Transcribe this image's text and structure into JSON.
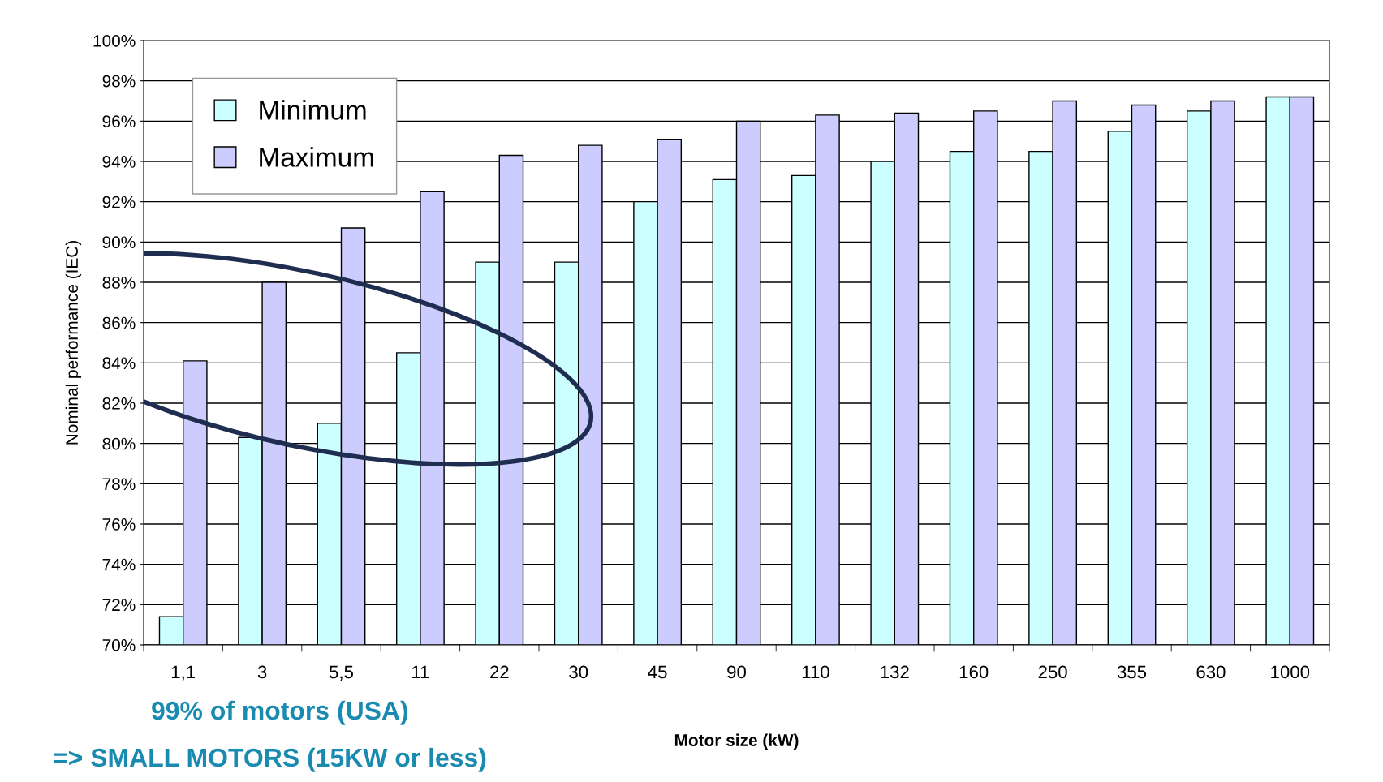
{
  "chart_data": {
    "type": "bar",
    "xlabel": "Motor size (kW)",
    "ylabel": "Nominal performance (IEC)",
    "categories": [
      "1,1",
      "3",
      "5,5",
      "11",
      "22",
      "30",
      "45",
      "90",
      "110",
      "132",
      "160",
      "250",
      "355",
      "630",
      "1000"
    ],
    "series": [
      {
        "name": "Minimum",
        "color": "#ccffff",
        "values": [
          71.4,
          80.3,
          81.0,
          84.5,
          89.0,
          89.0,
          92.0,
          93.1,
          93.3,
          94.0,
          94.5,
          94.5,
          95.5,
          96.5,
          97.2
        ]
      },
      {
        "name": "Maximum",
        "color": "#ccccff",
        "values": [
          84.1,
          88.0,
          90.7,
          92.5,
          94.3,
          94.8,
          95.1,
          96.0,
          96.3,
          96.4,
          96.5,
          97.0,
          96.8,
          97.0,
          97.2
        ]
      }
    ],
    "ylim": [
      70,
      100
    ],
    "yticks": [
      {
        "value": 70,
        "label": "70%"
      },
      {
        "value": 72,
        "label": "72%"
      },
      {
        "value": 74,
        "label": "74%"
      },
      {
        "value": 76,
        "label": "76%"
      },
      {
        "value": 78,
        "label": "78%"
      },
      {
        "value": 80,
        "label": "80%"
      },
      {
        "value": 82,
        "label": "82%"
      },
      {
        "value": 84,
        "label": "84%"
      },
      {
        "value": 86,
        "label": "86%"
      },
      {
        "value": 88,
        "label": "88%"
      },
      {
        "value": 90,
        "label": "90%"
      },
      {
        "value": 92,
        "label": "92%"
      },
      {
        "value": 94,
        "label": "94%"
      },
      {
        "value": 96,
        "label": "96%"
      },
      {
        "value": 98,
        "label": "98%"
      },
      {
        "value": 100,
        "label": "100%"
      }
    ],
    "grid": "y",
    "legend": "top left",
    "annotations": [
      "99% of motors (USA)",
      "=> SMALL MOTORS (15KW or less)"
    ]
  }
}
